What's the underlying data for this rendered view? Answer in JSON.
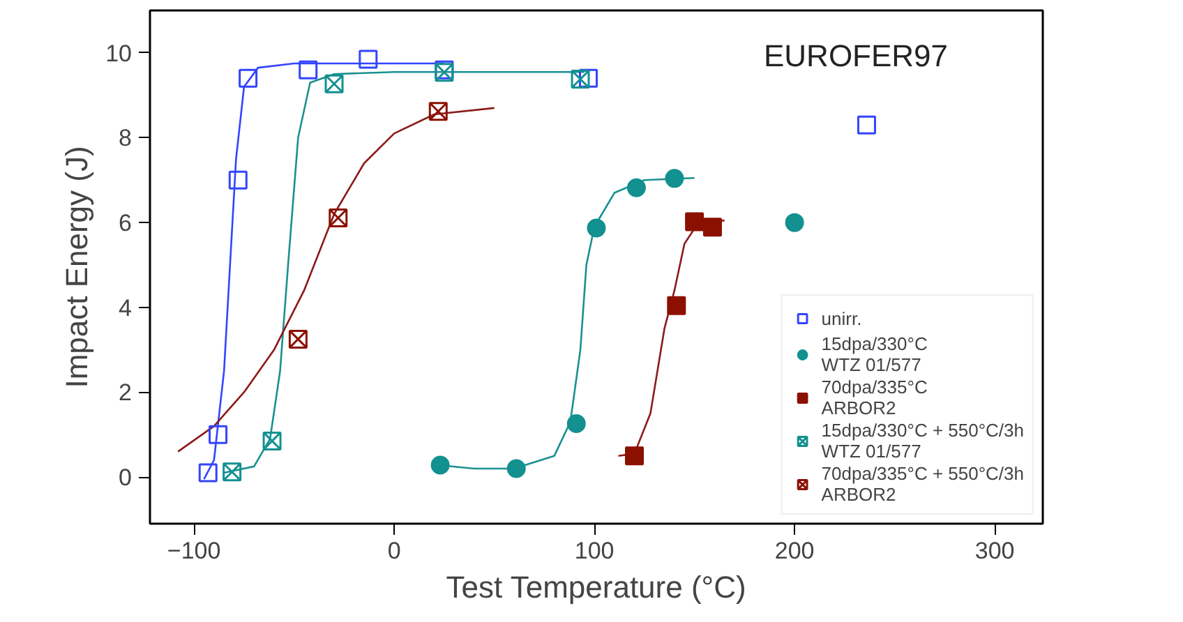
{
  "chart_data": {
    "type": "scatter",
    "annotations": [
      "EUROFER97"
    ],
    "xlabel": "Test Temperature (°C)",
    "ylabel": "Impact Energy (J)",
    "xlim": [
      -122,
      324
    ],
    "ylim": [
      -1.1,
      11
    ],
    "xticks": [
      -100,
      0,
      100,
      200,
      300
    ],
    "yticks": [
      0,
      2,
      4,
      6,
      8,
      10
    ],
    "grid": false,
    "legend": "right",
    "series": [
      {
        "type": "line",
        "color": "#3344ff",
        "marker": "none",
        "x": [
          -95,
          -90,
          -85,
          -82,
          -79,
          -75,
          -68,
          -50,
          25
        ],
        "values": [
          -0.05,
          0.4,
          2.5,
          5,
          7.5,
          9.2,
          9.65,
          9.75,
          9.75
        ]
      },
      {
        "type": "line",
        "color": "#1a9090",
        "marker": "none",
        "x": [
          -85,
          -70,
          -62,
          -57,
          -53,
          -48,
          -42,
          -30,
          0,
          95
        ],
        "values": [
          0.1,
          0.25,
          0.9,
          2.5,
          5,
          8,
          9.3,
          9.5,
          9.55,
          9.55
        ]
      },
      {
        "type": "line",
        "color": "#8b1a1a",
        "marker": "none",
        "x": [
          -108,
          -90,
          -75,
          -60,
          -45,
          -30,
          -15,
          0,
          20,
          50
        ],
        "values": [
          0.6,
          1.2,
          2.0,
          3.0,
          4.4,
          6.2,
          7.4,
          8.1,
          8.55,
          8.7
        ]
      },
      {
        "type": "line",
        "color": "#1a9090",
        "marker": "none",
        "x": [
          22,
          40,
          60,
          80,
          88,
          93,
          96,
          100,
          110,
          125,
          150
        ],
        "values": [
          0.28,
          0.2,
          0.2,
          0.5,
          1.3,
          3,
          5,
          5.9,
          6.7,
          7.0,
          7.05
        ]
      },
      {
        "type": "line",
        "color": "#8b1a1a",
        "marker": "none",
        "x": [
          112,
          120,
          128,
          135,
          140,
          145,
          152,
          165
        ],
        "values": [
          0.5,
          0.55,
          1.5,
          3.5,
          4.4,
          5.5,
          6.0,
          6.05
        ]
      },
      {
        "name": "unirr.",
        "color": "#3344ff",
        "marker": "square_open",
        "x": [
          -93,
          -88,
          -78,
          -73,
          -43,
          -13,
          25,
          97,
          236
        ],
        "values": [
          0.1,
          1.0,
          7.0,
          9.4,
          9.6,
          9.85,
          9.6,
          9.4,
          8.3
        ]
      },
      {
        "name": "15dpa/330°C\nWTZ 01/577",
        "color": "#139090",
        "marker": "circle",
        "x": [
          23,
          61,
          91,
          101,
          121,
          140,
          200
        ],
        "values": [
          0.28,
          0.2,
          1.26,
          5.87,
          6.82,
          7.04,
          6.0
        ]
      },
      {
        "name": "70dpa/335°C\nARBOR2",
        "color": "#8b1000",
        "marker": "square",
        "x": [
          120,
          141,
          150,
          159
        ],
        "values": [
          0.5,
          4.04,
          6.02,
          5.89
        ]
      },
      {
        "name": "15dpa/330°C + 550°C/3h\nWTZ 01/577",
        "color": "#139090",
        "marker": "cross",
        "x": [
          -81,
          -61,
          -30,
          25,
          93
        ],
        "values": [
          0.12,
          0.85,
          9.27,
          9.54,
          9.38
        ]
      },
      {
        "name": "70dpa/335°C + 550°C/3h\nARBOR2",
        "color": "#8b1000",
        "marker": "cross",
        "x": [
          -48,
          -28,
          22
        ],
        "values": [
          3.25,
          6.11,
          8.62
        ]
      }
    ]
  }
}
